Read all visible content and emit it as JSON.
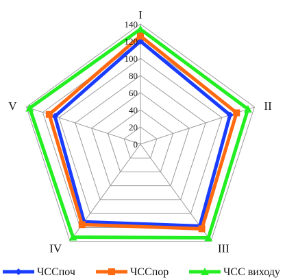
{
  "chart_data": {
    "type": "radar",
    "categories": [
      "I",
      "II",
      "III",
      "IV",
      "V"
    ],
    "ylim": [
      0,
      140
    ],
    "ticks": [
      0,
      20,
      40,
      60,
      80,
      100,
      120,
      140
    ],
    "grid": true,
    "legend_position": "bottom",
    "series": [
      {
        "name": "ЧССпоч",
        "color": "#1a3cff",
        "marker": "diamond",
        "values": [
          120,
          110,
          118,
          112,
          105
        ]
      },
      {
        "name": "ЧССпор",
        "color": "#ff6a10",
        "marker": "square",
        "values": [
          126,
          118,
          122,
          116,
          112
        ]
      },
      {
        "name": "ЧСС виходу",
        "color": "#22ee22",
        "marker": "triangle",
        "values": [
          134,
          132,
          135,
          134,
          136
        ]
      }
    ]
  }
}
